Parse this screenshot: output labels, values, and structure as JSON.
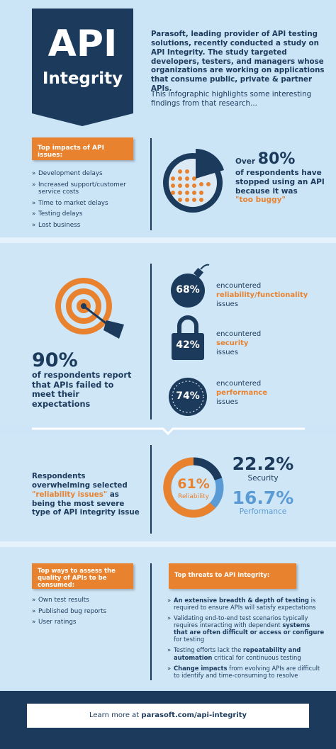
{
  "header": {
    "title_line1": "API",
    "title_line2": "Integrity",
    "intro": "Parasoft, leading provider of API testing solutions, recently conducted a study on API Integrity. The study targeted developers, testers, and managers whose organizations are working on applications that consume public, private & partner APIs.",
    "highlight": "This infographic highlights some interesting findings from that research..."
  },
  "impacts": {
    "heading": "Top impacts of API issues:",
    "items": [
      "Development delays",
      "Increased support/customer service costs",
      "Time to market delays",
      "Testing delays",
      "Lost business"
    ]
  },
  "stopped": {
    "lead": "Over",
    "value": "80%",
    "text": "of respondents have stopped using an API because it was",
    "quote": "\"too buggy\""
  },
  "expectations": {
    "value": "90%",
    "text": "of respondents report that APIs failed to meet their expectations"
  },
  "encountered": [
    {
      "value": "68%",
      "lead": "encountered",
      "kind": "reliability/functionality",
      "tail": "issues"
    },
    {
      "value": "42%",
      "lead": "encountered",
      "kind": "security",
      "tail": "issues"
    },
    {
      "value": "74%",
      "lead": "encountered",
      "kind": "performance",
      "tail": "issues"
    }
  ],
  "severity": {
    "text1": "Respondents overwhelming selected",
    "quote": "\"reliability issues\"",
    "text2": "as being the most severe type of API integrity issue",
    "reliability": {
      "value": "61%",
      "label": "Reliability"
    },
    "security": {
      "value": "22.2%",
      "label": "Security"
    },
    "performance": {
      "value": "16.7%",
      "label": "Performance"
    }
  },
  "assess": {
    "heading": "Top ways to assess the quality of APIs to be consumed:",
    "items": [
      "Own test results",
      "Published bug reports",
      "User ratings"
    ]
  },
  "threats": {
    "heading": "Top threats to API integrity:",
    "items": [
      [
        {
          "strong": "An extensive breadth & depth of testing"
        },
        {
          "plain": " is required to ensure APIs will satisfy expectations"
        }
      ],
      [
        {
          "plain": "Validating end-to-end test scenarios typically requires interacting with dependent "
        },
        {
          "strong": "systems that are often difficult or access or configure"
        },
        {
          "plain": " for testing"
        }
      ],
      [
        {
          "plain": "Testing efforts lack the "
        },
        {
          "strong": "repeatability and automation"
        },
        {
          "plain": " critical for continuous testing"
        }
      ],
      [
        {
          "strong": "Change impacts"
        },
        {
          "plain": " from evolving APIs are difficult to identify and time-consuming to resolve"
        }
      ]
    ]
  },
  "footer": {
    "text": "Learn more at",
    "link": "parasoft.com/api-integrity"
  }
}
